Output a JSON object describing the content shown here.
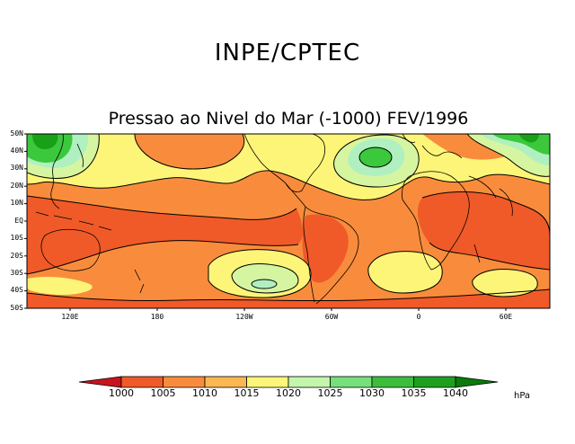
{
  "title": "INPE/CPTEC",
  "subtitle": "Pressao ao Nivel do Mar (-1000) FEV/1996",
  "latitude_labels": [
    "50N",
    "40N",
    "30N",
    "20N",
    "10N",
    "EQ",
    "10S",
    "20S",
    "30S",
    "40S",
    "50S"
  ],
  "longitude_labels": [
    "120E",
    "180",
    "120W",
    "60W",
    "0",
    "60E"
  ],
  "colorbar": {
    "unit": "hPa",
    "levels": [
      "1000",
      "1005",
      "1010",
      "1015",
      "1020",
      "1025",
      "1030",
      "1035",
      "1040"
    ],
    "colors": [
      "#c8141e",
      "#f05a28",
      "#f98c3c",
      "#fbb852",
      "#fdf578",
      "#c3f5aa",
      "#78e07a",
      "#3cbe3c",
      "#1ea01e",
      "#0a7a0a"
    ]
  },
  "map_colors": {
    "c1005": "#f05a28",
    "c1010": "#f98c3c",
    "c1015": "#fdf578",
    "c1020": "#d6f5a0",
    "c1025": "#b0f0c0",
    "c1030": "#3cc83c",
    "c1035": "#18a018",
    "land": "#000000"
  }
}
